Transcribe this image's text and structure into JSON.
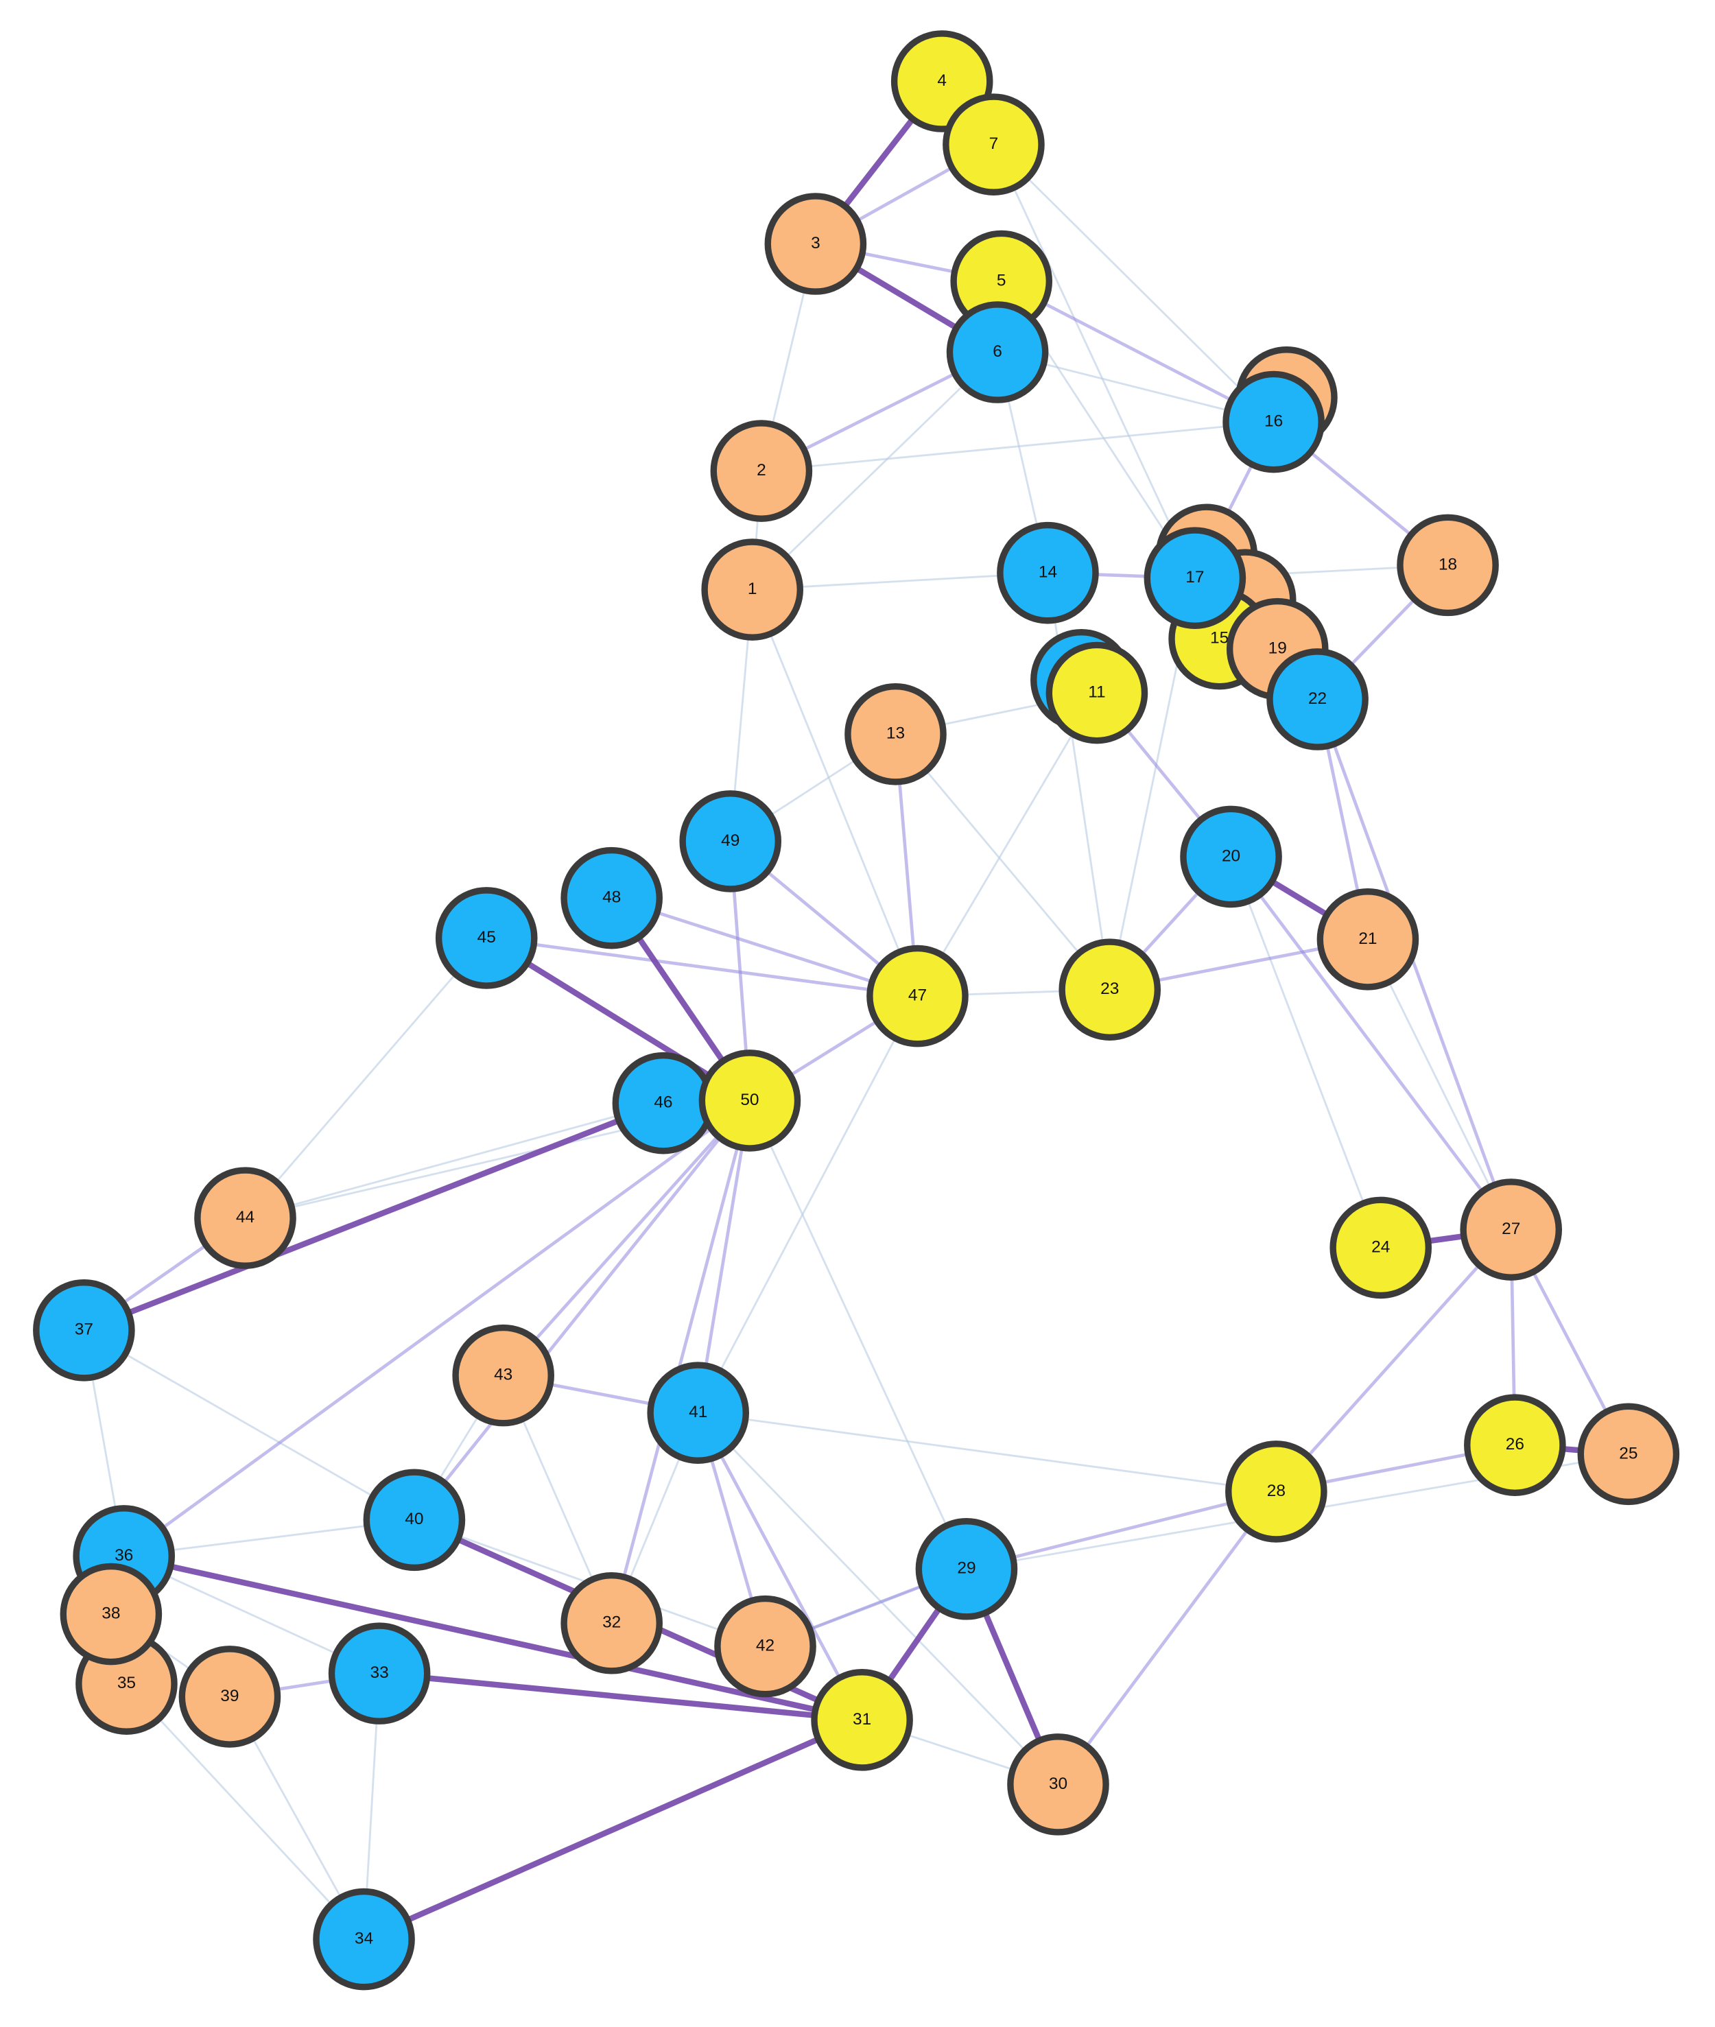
{
  "nodes": [
    {
      "label": "1",
      "color": "#fbb87e"
    },
    {
      "label": "2",
      "color": "#fbb87e"
    },
    {
      "label": "3",
      "color": "#fbb87e"
    },
    {
      "label": "4",
      "color": "#f5ee30"
    },
    {
      "label": "5",
      "color": "#f5ee30"
    },
    {
      "label": "6",
      "color": "#1fb3f8"
    },
    {
      "label": "7",
      "color": "#f5ee30"
    },
    {
      "label": "11",
      "color": "#f5ee30"
    },
    {
      "label": "13",
      "color": "#fbb87e"
    },
    {
      "label": "14",
      "color": "#1fb3f8"
    },
    {
      "label": "15",
      "color": "#f5ee30"
    },
    {
      "label": "16",
      "color": "#1fb3f8"
    },
    {
      "label": "17",
      "color": "#1fb3f8"
    },
    {
      "label": "18",
      "color": "#fbb87e"
    },
    {
      "label": "19",
      "color": "#fbb87e"
    },
    {
      "label": "20",
      "color": "#1fb3f8"
    },
    {
      "label": "21",
      "color": "#fbb87e"
    },
    {
      "label": "22",
      "color": "#1fb3f8"
    },
    {
      "label": "23",
      "color": "#f5ee30"
    },
    {
      "label": "24",
      "color": "#f5ee30"
    },
    {
      "label": "25",
      "color": "#fbb87e"
    },
    {
      "label": "26",
      "color": "#f5ee30"
    },
    {
      "label": "27",
      "color": "#fbb87e"
    },
    {
      "label": "28",
      "color": "#f5ee30"
    },
    {
      "label": "29",
      "color": "#1fb3f8"
    },
    {
      "label": "30",
      "color": "#fbb87e"
    },
    {
      "label": "31",
      "color": "#f5ee30"
    },
    {
      "label": "32",
      "color": "#fbb87e"
    },
    {
      "label": "33",
      "color": "#1fb3f8"
    },
    {
      "label": "34",
      "color": "#1fb3f8"
    },
    {
      "label": "35",
      "color": "#fbb87e"
    },
    {
      "label": "36",
      "color": "#1fb3f8"
    },
    {
      "label": "37",
      "color": "#1fb3f8"
    },
    {
      "label": "38",
      "color": "#fbb87e"
    },
    {
      "label": "39",
      "color": "#fbb87e"
    },
    {
      "label": "40",
      "color": "#1fb3f8"
    },
    {
      "label": "41",
      "color": "#1fb3f8"
    },
    {
      "label": "42",
      "color": "#fbb87e"
    },
    {
      "label": "43",
      "color": "#fbb87e"
    },
    {
      "label": "44",
      "color": "#fbb87e"
    },
    {
      "label": "45",
      "color": "#1fb3f8"
    },
    {
      "label": "46",
      "color": "#1fb3f8"
    },
    {
      "label": "47",
      "color": "#f5ee30"
    },
    {
      "label": "48",
      "color": "#1fb3f8"
    },
    {
      "label": "49",
      "color": "#1fb3f8"
    },
    {
      "label": "50",
      "color": "#f5ee30"
    }
  ]
}
